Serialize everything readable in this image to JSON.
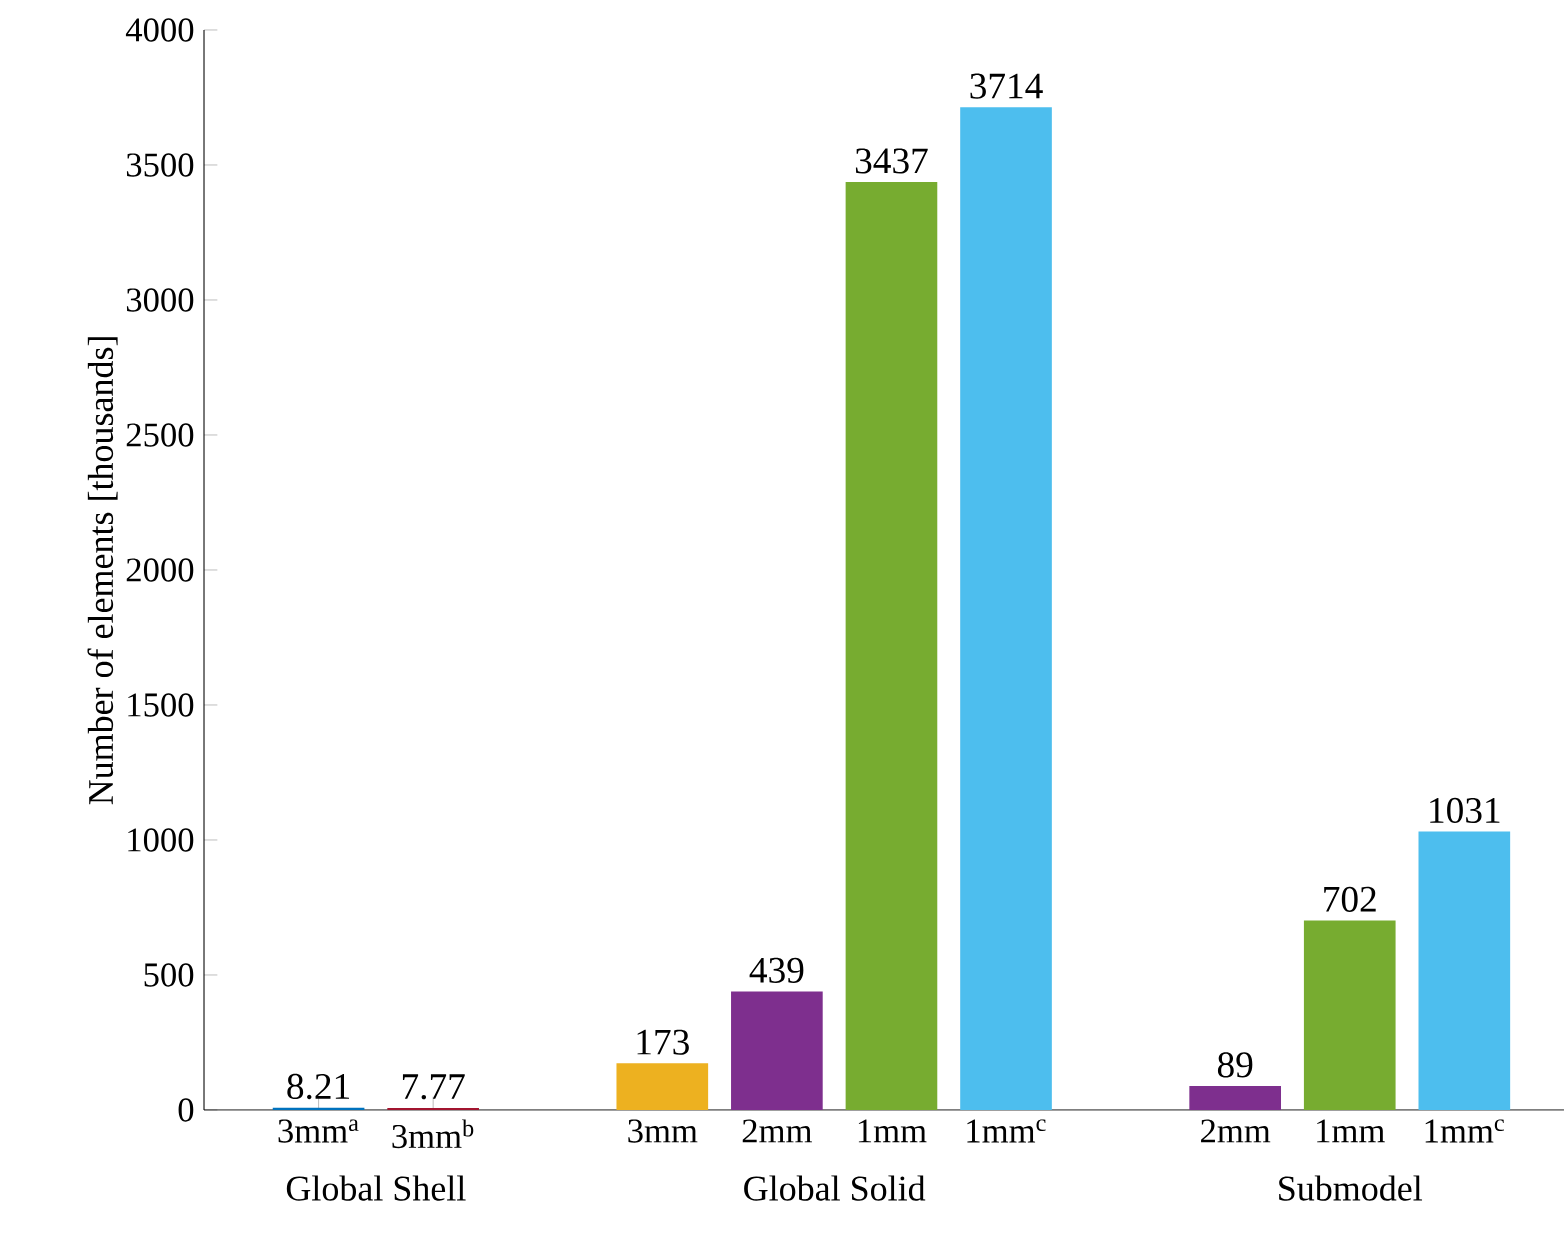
{
  "chart_data": {
    "type": "bar",
    "ylabel": "Number of elements [thousands]",
    "categories": [
      "3mm$^{a}$",
      "3mm$^{b}$",
      null,
      "3mm",
      "2mm",
      "1mm",
      "1mm$^{c}$",
      null,
      "2mm",
      "1mm",
      "1mm$^{c}$"
    ],
    "values": [
      8.21,
      7.77,
      null,
      173,
      439,
      3437,
      3714,
      null,
      89,
      702,
      1031
    ],
    "colors": [
      "#0072bd",
      "#a2142f",
      null,
      "#edb120",
      "#7e2f8e",
      "#77ac30",
      "#4dbeee",
      null,
      "#7e2f8e",
      "#77ac30",
      "#4dbeee"
    ],
    "ylim": [
      0,
      4000
    ],
    "yticks": [
      0,
      500,
      1000,
      1500,
      2000,
      2500,
      3000,
      3500,
      4000
    ],
    "data_labels": true,
    "annotations": [
      "Global Shell",
      "Global Solid",
      "Submodel"
    ]
  }
}
